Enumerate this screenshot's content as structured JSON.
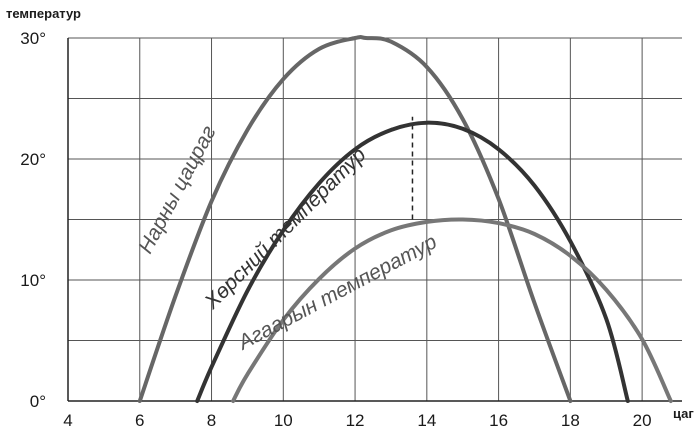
{
  "chart_data": {
    "type": "line",
    "ylabel": "температур",
    "xlabel": "цаг",
    "xlim": [
      4,
      21
    ],
    "ylim": [
      0,
      30
    ],
    "x_ticks": [
      4,
      6,
      8,
      10,
      12,
      14,
      16,
      18,
      20
    ],
    "y_ticks": [
      0,
      10,
      20,
      30
    ],
    "y_tick_labels": [
      "0°",
      "10°",
      "20°",
      "30°"
    ],
    "grid": true,
    "marker_x": 13.6,
    "series": [
      {
        "name": "Нарны цацраг",
        "color": "#666666",
        "x": [
          6,
          7,
          8,
          9,
          10,
          11,
          12,
          12.3,
          13,
          14,
          15,
          16,
          17,
          18
        ],
        "y": [
          0,
          8.7,
          16.5,
          22.4,
          26.6,
          29.1,
          30,
          30,
          29.7,
          27.6,
          23.3,
          16.7,
          8.1,
          0
        ]
      },
      {
        "name": "Хөрсний температур",
        "color": "#333333",
        "x": [
          7.6,
          8,
          9,
          10,
          11,
          12,
          13,
          14,
          15,
          16,
          17,
          18,
          19,
          19.6
        ],
        "y": [
          0,
          2.8,
          9.1,
          14.1,
          18,
          20.8,
          22.4,
          23,
          22.5,
          20.8,
          17.8,
          13.2,
          6.8,
          0
        ]
      },
      {
        "name": "Агаарын температур",
        "color": "#777777",
        "x": [
          8.6,
          9,
          10,
          11,
          12,
          13,
          14,
          15,
          16,
          17,
          18,
          19,
          20,
          20.8
        ],
        "y": [
          0,
          2.2,
          6.7,
          10.1,
          12.6,
          14.1,
          14.8,
          15,
          14.7,
          13.8,
          12,
          9.2,
          5.1,
          0
        ]
      }
    ]
  }
}
